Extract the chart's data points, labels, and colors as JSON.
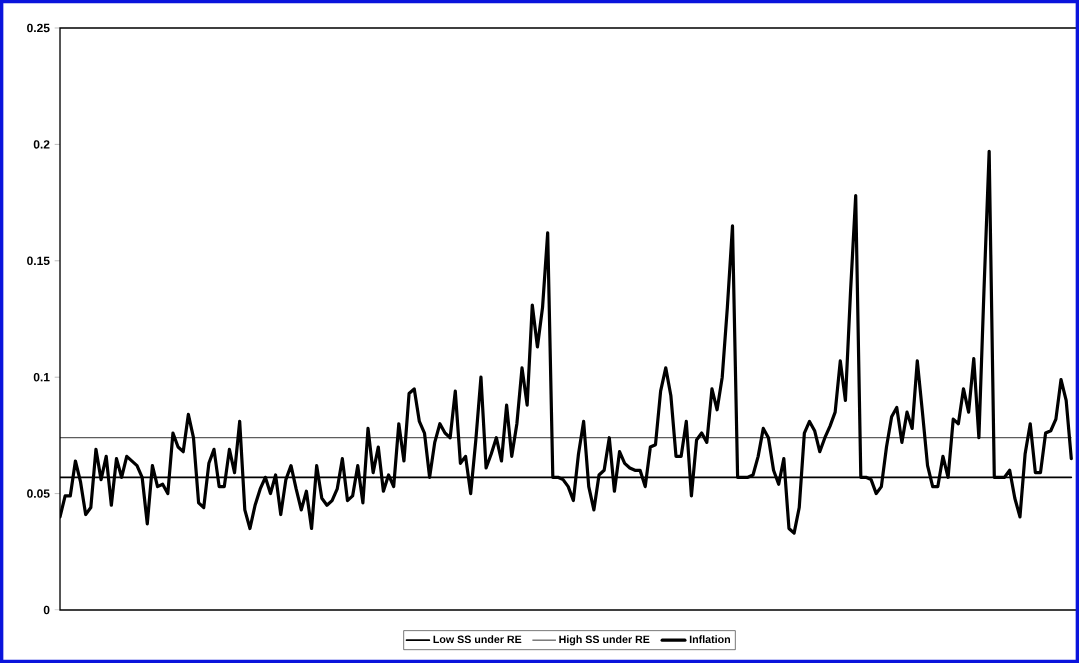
{
  "chart_data": {
    "type": "line",
    "categories": [
      null,
      null,
      null,
      null,
      null,
      null,
      null,
      null,
      null,
      null,
      null,
      null,
      null,
      null,
      null,
      null,
      null,
      null,
      null,
      null,
      null,
      null,
      null,
      null,
      null,
      null,
      null,
      null,
      null,
      null,
      null,
      null,
      null,
      null,
      null,
      null,
      null,
      null,
      null,
      null,
      null,
      null,
      null,
      null,
      null,
      null,
      null,
      null,
      null,
      null,
      null,
      null,
      null,
      null,
      null,
      null,
      null,
      null,
      null,
      null,
      null,
      null,
      null,
      null,
      null,
      null,
      null,
      null,
      null,
      null,
      null,
      null,
      null,
      null,
      null,
      null,
      null,
      null,
      null,
      null,
      null,
      null,
      null,
      null,
      null,
      null,
      null,
      null,
      null,
      null,
      null,
      null,
      null,
      null,
      null,
      null,
      null,
      null,
      null,
      null,
      null,
      null,
      null,
      null,
      null,
      null,
      null,
      null,
      null,
      null,
      null,
      null,
      null,
      null,
      null,
      null,
      null,
      null,
      null,
      null,
      null,
      null,
      null,
      null,
      null,
      null,
      null,
      null,
      null,
      null,
      null,
      null,
      null,
      null,
      null,
      null,
      null,
      null,
      null,
      null,
      null,
      null,
      null,
      null,
      null,
      null,
      null,
      null,
      null,
      null,
      null,
      null,
      null,
      null,
      null,
      null,
      null,
      null,
      null,
      null,
      null,
      null,
      null,
      null,
      null,
      null,
      null,
      null,
      null,
      null,
      null,
      null,
      null,
      null,
      null,
      null,
      null,
      null,
      null,
      null,
      null,
      null,
      null,
      null,
      null,
      null,
      null,
      null,
      null,
      null,
      null,
      null,
      null,
      null,
      null,
      null,
      null,
      null
    ],
    "series": [
      {
        "name": "Low SS under RE",
        "color": "#000000",
        "values": [
          0.057,
          0.057,
          0.057,
          0.057,
          0.057,
          0.057,
          0.057,
          0.057,
          0.057,
          0.057,
          0.057,
          0.057,
          0.057,
          0.057,
          0.057,
          0.057,
          0.057,
          0.057,
          0.057,
          0.057,
          0.057,
          0.057,
          0.057,
          0.057,
          0.057,
          0.057,
          0.057,
          0.057,
          0.057,
          0.057,
          0.057,
          0.057,
          0.057,
          0.057,
          0.057,
          0.057,
          0.057,
          0.057,
          0.057,
          0.057,
          0.057,
          0.057,
          0.057,
          0.057,
          0.057,
          0.057,
          0.057,
          0.057,
          0.057,
          0.057,
          0.057,
          0.057,
          0.057,
          0.057,
          0.057,
          0.057,
          0.057,
          0.057,
          0.057,
          0.057,
          0.057,
          0.057,
          0.057,
          0.057,
          0.057,
          0.057,
          0.057,
          0.057,
          0.057,
          0.057,
          0.057,
          0.057,
          0.057,
          0.057,
          0.057,
          0.057,
          0.057,
          0.057,
          0.057,
          0.057,
          0.057,
          0.057,
          0.057,
          0.057,
          0.057,
          0.057,
          0.057,
          0.057,
          0.057,
          0.057,
          0.057,
          0.057,
          0.057,
          0.057,
          0.057,
          0.057,
          0.057,
          0.057,
          0.057,
          0.057,
          0.057,
          0.057,
          0.057,
          0.057,
          0.057,
          0.057,
          0.057,
          0.057,
          0.057,
          0.057,
          0.057,
          0.057,
          0.057,
          0.057,
          0.057,
          0.057,
          0.057,
          0.057,
          0.057,
          0.057,
          0.057,
          0.057,
          0.057,
          0.057,
          0.057,
          0.057,
          0.057,
          0.057,
          0.057,
          0.057,
          0.057,
          0.057,
          0.057,
          0.057,
          0.057,
          0.057,
          0.057,
          0.057,
          0.057,
          0.057,
          0.057,
          0.057,
          0.057,
          0.057,
          0.057,
          0.057,
          0.057,
          0.057,
          0.057,
          0.057,
          0.057,
          0.057,
          0.057,
          0.057,
          0.057,
          0.057,
          0.057,
          0.057,
          0.057,
          0.057,
          0.057,
          0.057,
          0.057,
          0.057,
          0.057,
          0.057,
          0.057,
          0.057,
          0.057,
          0.057,
          0.057,
          0.057,
          0.057,
          0.057,
          0.057,
          0.057,
          0.057,
          0.057,
          0.057,
          0.057,
          0.057,
          0.057,
          0.057,
          0.057,
          0.057,
          0.057,
          0.057,
          0.057,
          0.057,
          0.057,
          0.057,
          0.057,
          0.057,
          0.057,
          0.057,
          0.057,
          0.057,
          0.057
        ]
      },
      {
        "name": "High SS under RE",
        "color": "#000000",
        "values": [
          0.074,
          0.074,
          0.074,
          0.074,
          0.074,
          0.074,
          0.074,
          0.074,
          0.074,
          0.074,
          0.074,
          0.074,
          0.074,
          0.074,
          0.074,
          0.074,
          0.074,
          0.074,
          0.074,
          0.074,
          0.074,
          0.074,
          0.074,
          0.074,
          0.074,
          0.074,
          0.074,
          0.074,
          0.074,
          0.074,
          0.074,
          0.074,
          0.074,
          0.074,
          0.074,
          0.074,
          0.074,
          0.074,
          0.074,
          0.074,
          0.074,
          0.074,
          0.074,
          0.074,
          0.074,
          0.074,
          0.074,
          0.074,
          0.074,
          0.074,
          0.074,
          0.074,
          0.074,
          0.074,
          0.074,
          0.074,
          0.074,
          0.074,
          0.074,
          0.074,
          0.074,
          0.074,
          0.074,
          0.074,
          0.074,
          0.074,
          0.074,
          0.074,
          0.074,
          0.074,
          0.074,
          0.074,
          0.074,
          0.074,
          0.074,
          0.074,
          0.074,
          0.074,
          0.074,
          0.074,
          0.074,
          0.074,
          0.074,
          0.074,
          0.074,
          0.074,
          0.074,
          0.074,
          0.074,
          0.074,
          0.074,
          0.074,
          0.074,
          0.074,
          0.074,
          0.074,
          0.074,
          0.074,
          0.074,
          0.074,
          0.074,
          0.074,
          0.074,
          0.074,
          0.074,
          0.074,
          0.074,
          0.074,
          0.074,
          0.074,
          0.074,
          0.074,
          0.074,
          0.074,
          0.074,
          0.074,
          0.074,
          0.074,
          0.074,
          0.074,
          0.074,
          0.074,
          0.074,
          0.074,
          0.074,
          0.074,
          0.074,
          0.074,
          0.074,
          0.074,
          0.074,
          0.074,
          0.074,
          0.074,
          0.074,
          0.074,
          0.074,
          0.074,
          0.074,
          0.074,
          0.074,
          0.074,
          0.074,
          0.074,
          0.074,
          0.074,
          0.074,
          0.074,
          0.074,
          0.074,
          0.074,
          0.074,
          0.074,
          0.074,
          0.074,
          0.074,
          0.074,
          0.074,
          0.074,
          0.074,
          0.074,
          0.074,
          0.074,
          0.074,
          0.074,
          0.074,
          0.074,
          0.074,
          0.074,
          0.074,
          0.074,
          0.074,
          0.074,
          0.074,
          0.074,
          0.074,
          0.074,
          0.074,
          0.074,
          0.074,
          0.074,
          0.074,
          0.074,
          0.074,
          0.074,
          0.074,
          0.074,
          0.074,
          0.074,
          0.074,
          0.074,
          0.074,
          0.074,
          0.074,
          0.074,
          0.074,
          0.074,
          0.074
        ]
      },
      {
        "name": "Inflation",
        "color": "#000000",
        "values": [
          0.04,
          0.049,
          0.049,
          0.064,
          0.055,
          0.041,
          0.044,
          0.069,
          0.056,
          0.066,
          0.045,
          0.065,
          0.057,
          0.066,
          0.064,
          0.062,
          0.057,
          0.037,
          0.062,
          0.053,
          0.054,
          0.05,
          0.076,
          0.07,
          0.068,
          0.084,
          0.074,
          0.046,
          0.044,
          0.063,
          0.069,
          0.053,
          0.053,
          0.069,
          0.059,
          0.081,
          0.043,
          0.035,
          0.045,
          0.052,
          0.057,
          0.05,
          0.058,
          0.041,
          0.056,
          0.062,
          0.052,
          0.043,
          0.051,
          0.035,
          0.062,
          0.048,
          0.045,
          0.047,
          0.052,
          0.065,
          0.047,
          0.049,
          0.062,
          0.046,
          0.078,
          0.059,
          0.07,
          0.051,
          0.058,
          0.053,
          0.08,
          0.064,
          0.093,
          0.095,
          0.081,
          0.076,
          0.057,
          0.072,
          0.08,
          0.076,
          0.074,
          0.094,
          0.063,
          0.066,
          0.05,
          0.073,
          0.1,
          0.061,
          0.067,
          0.074,
          0.064,
          0.088,
          0.066,
          0.08,
          0.104,
          0.088,
          0.131,
          0.113,
          0.13,
          0.162,
          0.057,
          0.057,
          0.056,
          0.053,
          0.047,
          0.067,
          0.081,
          0.053,
          0.043,
          0.058,
          0.06,
          0.074,
          0.051,
          0.068,
          0.063,
          0.061,
          0.06,
          0.06,
          0.053,
          0.07,
          0.071,
          0.094,
          0.104,
          0.092,
          0.066,
          0.066,
          0.081,
          0.049,
          0.073,
          0.076,
          0.072,
          0.095,
          0.086,
          0.1,
          0.13,
          0.165,
          0.057,
          0.057,
          0.057,
          0.058,
          0.066,
          0.078,
          0.074,
          0.06,
          0.054,
          0.065,
          0.035,
          0.033,
          0.044,
          0.076,
          0.081,
          0.077,
          0.068,
          0.074,
          0.079,
          0.085,
          0.107,
          0.09,
          0.137,
          0.178,
          0.057,
          0.057,
          0.056,
          0.05,
          0.053,
          0.07,
          0.083,
          0.087,
          0.072,
          0.085,
          0.078,
          0.107,
          0.085,
          0.062,
          0.053,
          0.053,
          0.066,
          0.057,
          0.082,
          0.08,
          0.095,
          0.085,
          0.108,
          0.074,
          0.138,
          0.197,
          0.057,
          0.057,
          0.057,
          0.06,
          0.048,
          0.04,
          0.067,
          0.08,
          0.059,
          0.059,
          0.076,
          0.077,
          0.082,
          0.099,
          0.09,
          0.065
        ]
      }
    ],
    "ylim": [
      0,
      0.25
    ],
    "yticks": [
      0,
      0.05,
      0.1,
      0.15,
      0.2,
      0.25
    ],
    "legend": "bottom",
    "marker": "none",
    "line_style": "solid"
  }
}
